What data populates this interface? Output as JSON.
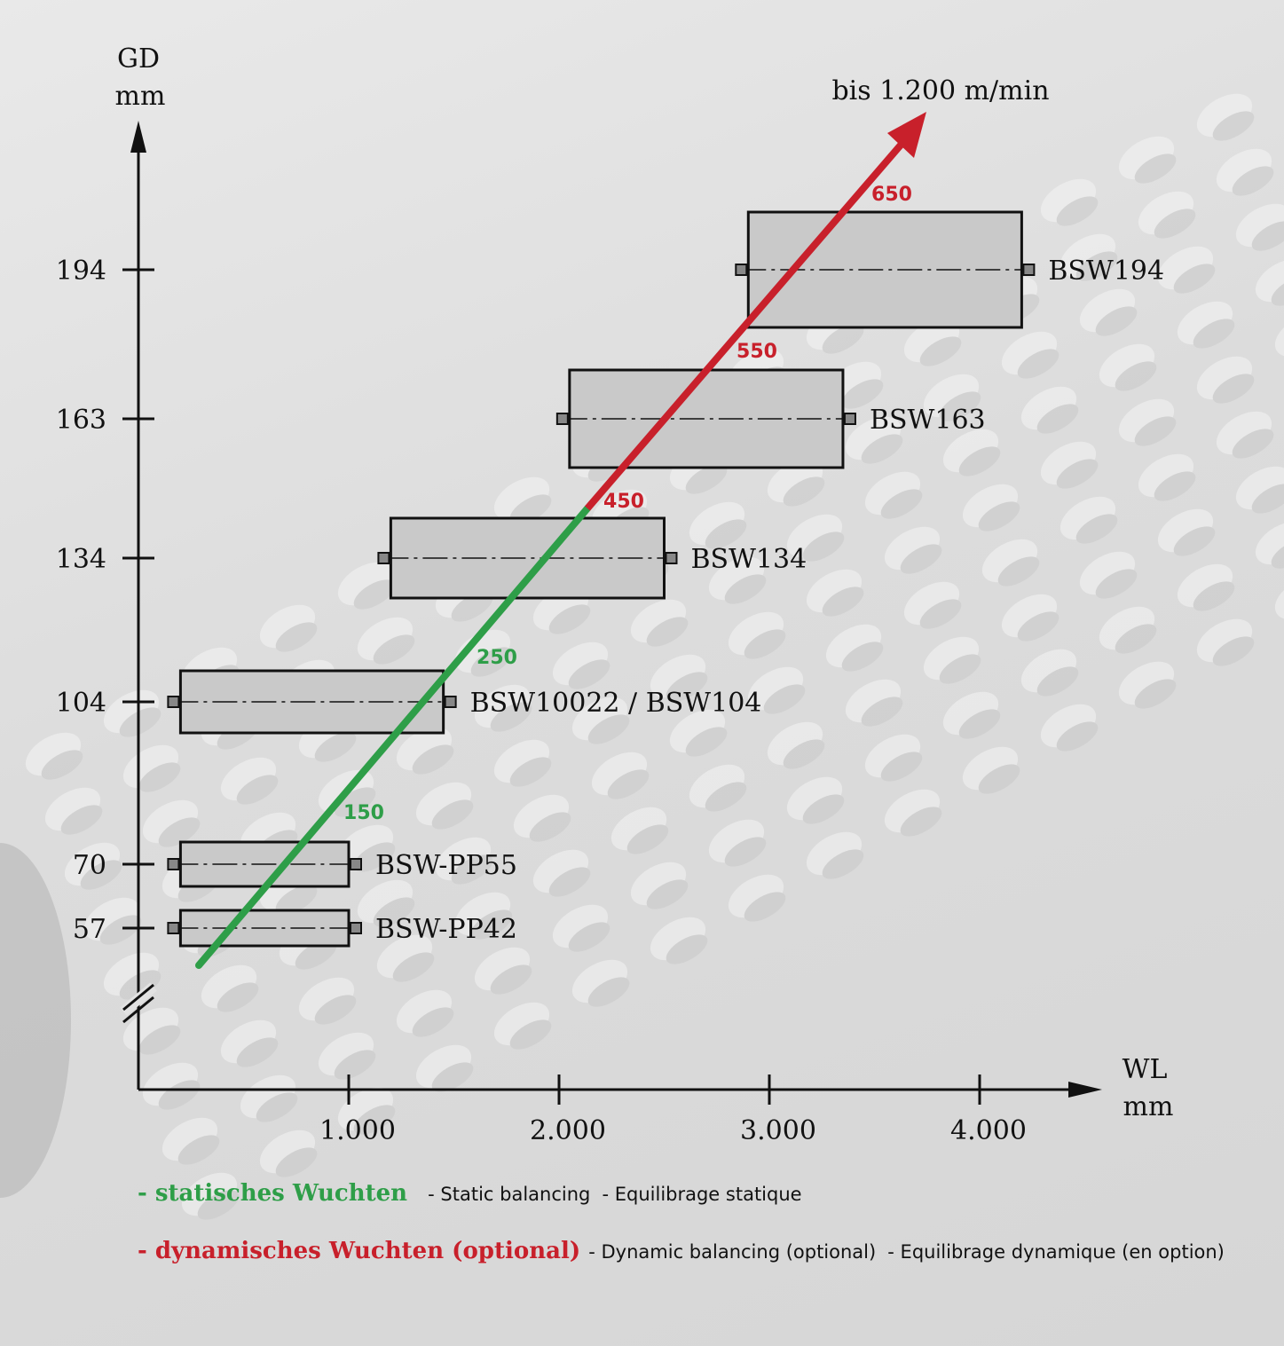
{
  "chart_data": {
    "type": "range",
    "y_axis": {
      "label": "GD",
      "unit": "mm",
      "ticks": [
        "194",
        "163",
        "134",
        "104",
        "70",
        "57"
      ]
    },
    "x_axis": {
      "label": "WL",
      "unit": "mm",
      "ticks": [
        "1.000",
        "2.000",
        "3.000",
        "4.000"
      ]
    },
    "bars": [
      {
        "name": "BSW194",
        "gd": 194,
        "wl_min": 2900,
        "wl_max": 4200
      },
      {
        "name": "BSW163",
        "gd": 163,
        "wl_min": 2050,
        "wl_max": 3350
      },
      {
        "name": "BSW134",
        "gd": 134,
        "wl_min": 1200,
        "wl_max": 2500
      },
      {
        "name": "BSW10022 / BSW104",
        "gd": 104,
        "wl_min": 200,
        "wl_max": 1450
      },
      {
        "name": "BSW-PP55",
        "gd": 70,
        "wl_min": 200,
        "wl_max": 1000
      },
      {
        "name": "BSW-PP42",
        "gd": 57,
        "wl_min": 200,
        "wl_max": 1000
      }
    ],
    "speed_markers": {
      "static": [
        "150",
        "250"
      ],
      "dynamic": [
        "450",
        "550",
        "650"
      ]
    },
    "arrow_label": "bis 1.200 m/min"
  },
  "legend": {
    "static": {
      "main": "- statisches Wuchten",
      "en": "- Static balancing",
      "fr": "- Equilibrage statique",
      "color": "#2e9e48"
    },
    "dynamic": {
      "main": "- dynamisches Wuchten (optional)",
      "en": "- Dynamic balancing (optional)",
      "fr": "- Equilibrage dynamique (en option)",
      "color": "#c8202b"
    }
  }
}
